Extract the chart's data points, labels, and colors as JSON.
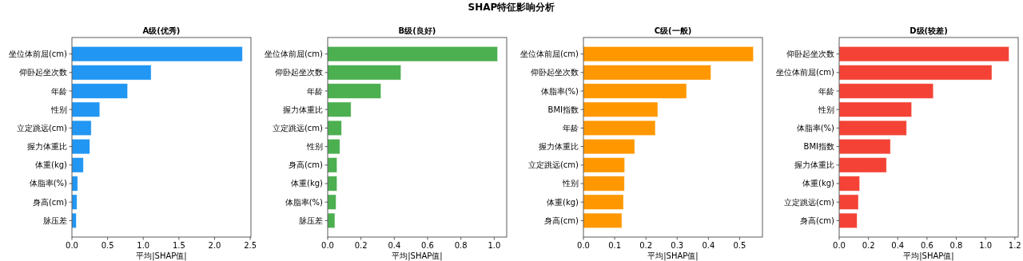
{
  "chart_data": [
    {
      "type": "bar",
      "orientation": "horizontal",
      "title": "A级(优秀)",
      "xlabel": "平均|SHAP值|",
      "annotations": [
        "SHAP特征影响分析"
      ],
      "color": "#2196f3",
      "categories": [
        "坐位体前屈(cm)",
        "仰卧起坐次数",
        "年龄",
        "性别",
        "立定跳远(cm)",
        "握力体重比",
        "体重(kg)",
        "体脂率(%)",
        "身高(cm)",
        "脉压差"
      ],
      "values": [
        2.39,
        1.11,
        0.78,
        0.39,
        0.27,
        0.25,
        0.16,
        0.08,
        0.07,
        0.06
      ],
      "xlim": [
        0,
        2.51
      ],
      "xticks": [
        {
          "value": 0,
          "label": "0.0"
        },
        0.5,
        {
          "value": 1,
          "label": "1.0"
        },
        1.5,
        {
          "value": 2,
          "label": "2.0"
        },
        2.5
      ]
    },
    {
      "type": "bar",
      "orientation": "horizontal",
      "title": "B级(良好)",
      "xlabel": "平均|SHAP值|",
      "color": "#4caf50",
      "categories": [
        "坐位体前屈(cm)",
        "仰卧起坐次数",
        "年龄",
        "握力体重比",
        "立定跳远(cm)",
        "性别",
        "身高(cm)",
        "体重(kg)",
        "体脂率(%)",
        "脉压差"
      ],
      "values": [
        1.02,
        0.44,
        0.32,
        0.14,
        0.083,
        0.073,
        0.056,
        0.056,
        0.05,
        0.043
      ],
      "xlim": [
        0,
        1.075
      ],
      "xticks": [
        {
          "value": 0,
          "label": "0.0"
        },
        0.2,
        0.4,
        0.6,
        0.8,
        {
          "value": 1,
          "label": "1.0"
        }
      ]
    },
    {
      "type": "bar",
      "orientation": "horizontal",
      "title": "C级(一般)",
      "xlabel": "平均|SHAP值|",
      "color": "#ff9800",
      "categories": [
        "坐位体前屈(cm)",
        "仰卧起坐次数",
        "体脂率(%)",
        "BMI指数",
        "年龄",
        "握力体重比",
        "立定跳远(cm)",
        "性别",
        "体重(kg)",
        "身高(cm)"
      ],
      "values": [
        0.544,
        0.408,
        0.33,
        0.238,
        0.23,
        0.164,
        0.132,
        0.131,
        0.128,
        0.123
      ],
      "xlim": [
        0,
        0.573
      ],
      "xticks": [
        {
          "value": 0,
          "label": "0.0"
        },
        0.1,
        0.2,
        0.3,
        0.4,
        0.5
      ]
    },
    {
      "type": "bar",
      "orientation": "horizontal",
      "title": "D级(较差)",
      "xlabel": "平均|SHAP值|",
      "color": "#f44336",
      "categories": [
        "仰卧起坐次数",
        "坐位体前屈(cm)",
        "年龄",
        "性别",
        "体脂率(%)",
        "BMI指数",
        "握力体重比",
        "体重(kg)",
        "立定跳远(cm)",
        "身高(cm)"
      ],
      "values": [
        1.16,
        1.043,
        0.643,
        0.495,
        0.46,
        0.35,
        0.323,
        0.14,
        0.131,
        0.122
      ],
      "xlim": [
        0,
        1.223
      ],
      "xticks": [
        {
          "value": 0,
          "label": "0.0"
        },
        0.2,
        0.4,
        0.6,
        0.8,
        {
          "value": 1,
          "label": "1.0"
        },
        1.2
      ]
    }
  ]
}
